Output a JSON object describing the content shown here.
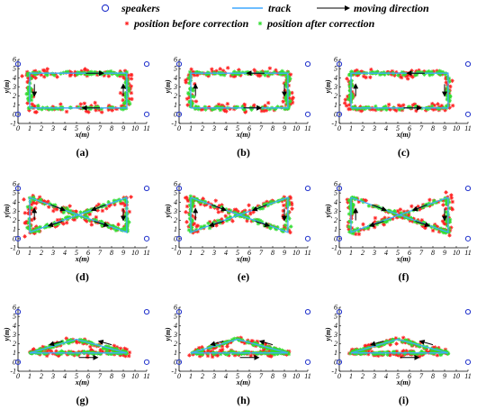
{
  "figure": {
    "legend": [
      {
        "key": "speakers",
        "label": "speakers",
        "marker": "circle",
        "color": "#2233cc"
      },
      {
        "key": "track",
        "label": "track",
        "marker": "line",
        "color": "#3fa9ff"
      },
      {
        "key": "moving_direction",
        "label": "moving direction",
        "marker": "arrow",
        "color": "#000000"
      },
      {
        "key": "before",
        "label": "position before correction",
        "marker": "asterisk",
        "color": "#ff2020"
      },
      {
        "key": "after",
        "label": "position after correction",
        "marker": "asterisk",
        "color": "#33dd33"
      }
    ]
  },
  "chart_data": [
    {
      "panel": "(a)",
      "type": "scatter",
      "track_shape": "rectangle",
      "arrows": "ccw",
      "xlabel": "x(m)",
      "ylabel": "y(m)",
      "xlim": [
        0,
        11
      ],
      "ylim": [
        -1,
        6
      ],
      "xticks": [
        "0",
        "1",
        "2",
        "3",
        "4",
        "5",
        "6",
        "7",
        "8",
        "9",
        "10",
        "11"
      ],
      "yticks": [
        "-1",
        "0",
        "1",
        "2",
        "3",
        "4",
        "5",
        "6"
      ],
      "speakers": [
        [
          0,
          0
        ],
        [
          0,
          5.5
        ],
        [
          11,
          0
        ],
        [
          11,
          5.5
        ]
      ],
      "track": [
        [
          1,
          0.7
        ],
        [
          9.3,
          0.7
        ],
        [
          9.3,
          4.5
        ],
        [
          1,
          4.5
        ],
        [
          1,
          0.7
        ]
      ],
      "direction_arrows": [
        [
          [
            7,
            0.7
          ],
          [
            5.5,
            0.7
          ]
        ],
        [
          [
            5.8,
            4.5
          ],
          [
            7.3,
            4.5
          ]
        ],
        [
          [
            1.4,
            3.3
          ],
          [
            1.4,
            2
          ]
        ],
        [
          [
            9,
            2
          ],
          [
            9,
            3.3
          ]
        ]
      ],
      "series": [
        {
          "name": "position before correction",
          "spread": 0.42
        },
        {
          "name": "position after correction",
          "spread": 0.18
        }
      ]
    },
    {
      "panel": "(b)",
      "type": "scatter",
      "track_shape": "rectangle",
      "arrows": "cw",
      "xlabel": "x(m)",
      "ylabel": "y(m)",
      "xlim": [
        0,
        11
      ],
      "ylim": [
        -1,
        6
      ],
      "xticks": [
        "0",
        "1",
        "2",
        "3",
        "4",
        "5",
        "6",
        "7",
        "8",
        "9",
        "10",
        "11"
      ],
      "yticks": [
        "-1",
        "0",
        "1",
        "2",
        "3",
        "4",
        "5",
        "6"
      ],
      "speakers": [
        [
          0,
          0
        ],
        [
          0,
          5.5
        ],
        [
          11,
          0
        ],
        [
          11,
          5.5
        ]
      ],
      "track": [
        [
          1,
          0.7
        ],
        [
          9.3,
          0.7
        ],
        [
          9.3,
          4.5
        ],
        [
          1,
          4.5
        ],
        [
          1,
          0.7
        ]
      ],
      "direction_arrows": [
        [
          [
            5.5,
            0.7
          ],
          [
            7,
            0.7
          ]
        ],
        [
          [
            7.3,
            4.5
          ],
          [
            5.8,
            4.5
          ]
        ],
        [
          [
            1.4,
            2
          ],
          [
            1.4,
            3.3
          ]
        ],
        [
          [
            9,
            3.3
          ],
          [
            9,
            2
          ]
        ]
      ],
      "series": [
        {
          "name": "position before correction",
          "spread": 0.42
        },
        {
          "name": "position after correction",
          "spread": 0.18
        }
      ]
    },
    {
      "panel": "(c)",
      "type": "scatter",
      "track_shape": "rectangle",
      "arrows": "cw",
      "xlabel": "x(m)",
      "ylabel": "y(m)",
      "xlim": [
        0,
        11
      ],
      "ylim": [
        -1,
        6
      ],
      "xticks": [
        "0",
        "1",
        "2",
        "3",
        "4",
        "5",
        "6",
        "7",
        "8",
        "9",
        "10",
        "11"
      ],
      "yticks": [
        "-1",
        "0",
        "1",
        "2",
        "3",
        "4",
        "5",
        "6"
      ],
      "speakers": [
        [
          0,
          0
        ],
        [
          0,
          5.5
        ],
        [
          11,
          0
        ],
        [
          11,
          5.5
        ]
      ],
      "track": [
        [
          1,
          0.7
        ],
        [
          9.3,
          0.7
        ],
        [
          9.3,
          4.5
        ],
        [
          1,
          4.5
        ],
        [
          1,
          0.7
        ]
      ],
      "direction_arrows": [
        [
          [
            5.5,
            0.7
          ],
          [
            7,
            0.7
          ]
        ],
        [
          [
            7.3,
            4.5
          ],
          [
            5.8,
            4.5
          ]
        ],
        [
          [
            1.4,
            2
          ],
          [
            1.4,
            3.3
          ]
        ],
        [
          [
            9,
            3.3
          ],
          [
            9,
            2
          ]
        ]
      ],
      "series": [
        {
          "name": "position before correction",
          "spread": 0.42
        },
        {
          "name": "position after correction",
          "spread": 0.18
        }
      ]
    },
    {
      "panel": "(d)",
      "type": "scatter",
      "track_shape": "hourglass",
      "arrows": "fig8",
      "xlabel": "x(m)",
      "ylabel": "y(m)",
      "xlim": [
        0,
        11
      ],
      "ylim": [
        -1,
        6
      ],
      "xticks": [
        "0",
        "1",
        "2",
        "3",
        "4",
        "5",
        "6",
        "7",
        "8",
        "9",
        "10",
        "11"
      ],
      "yticks": [
        "-1",
        "0",
        "1",
        "2",
        "3",
        "4",
        "5",
        "6"
      ],
      "speakers": [
        [
          0,
          0
        ],
        [
          0,
          5.5
        ],
        [
          11,
          0
        ],
        [
          11,
          5.5
        ]
      ],
      "track": [
        [
          1,
          4.5
        ],
        [
          9.3,
          0.7
        ],
        [
          9.3,
          4.5
        ],
        [
          1,
          0.7
        ],
        [
          1,
          4.5
        ]
      ],
      "direction_arrows": [
        [
          [
            2.8,
            3.7
          ],
          [
            4,
            3.1
          ]
        ],
        [
          [
            6.5,
            1.9
          ],
          [
            7.7,
            1.4
          ]
        ],
        [
          [
            7.5,
            3.7
          ],
          [
            6.3,
            3.1
          ]
        ],
        [
          [
            3.8,
            1.9
          ],
          [
            2.6,
            1.4
          ]
        ],
        [
          [
            1.4,
            2
          ],
          [
            1.4,
            3.3
          ]
        ],
        [
          [
            9,
            3.3
          ],
          [
            9,
            2
          ]
        ]
      ],
      "series": [
        {
          "name": "position before correction",
          "spread": 0.42
        },
        {
          "name": "position after correction",
          "spread": 0.18
        }
      ]
    },
    {
      "panel": "(e)",
      "type": "scatter",
      "track_shape": "hourglass",
      "arrows": "fig8",
      "xlabel": "x(m)",
      "ylabel": "y(m)",
      "xlim": [
        0,
        11
      ],
      "ylim": [
        -1,
        6
      ],
      "xticks": [
        "0",
        "1",
        "2",
        "3",
        "4",
        "5",
        "6",
        "7",
        "8",
        "9",
        "10",
        "11"
      ],
      "yticks": [
        "-1",
        "0",
        "1",
        "2",
        "3",
        "4",
        "5",
        "6"
      ],
      "speakers": [
        [
          0,
          0
        ],
        [
          0,
          5.5
        ],
        [
          11,
          0
        ],
        [
          11,
          5.5
        ]
      ],
      "track": [
        [
          1,
          4.5
        ],
        [
          9.3,
          0.7
        ],
        [
          9.3,
          4.5
        ],
        [
          1,
          0.7
        ],
        [
          1,
          4.5
        ]
      ],
      "direction_arrows": [
        [
          [
            2.8,
            3.7
          ],
          [
            4,
            3.1
          ]
        ],
        [
          [
            6.5,
            1.9
          ],
          [
            7.7,
            1.4
          ]
        ],
        [
          [
            7.5,
            3.7
          ],
          [
            6.3,
            3.1
          ]
        ],
        [
          [
            3.8,
            1.9
          ],
          [
            2.6,
            1.4
          ]
        ],
        [
          [
            1.4,
            2
          ],
          [
            1.4,
            3.3
          ]
        ],
        [
          [
            9,
            3.3
          ],
          [
            9,
            2
          ]
        ]
      ],
      "series": [
        {
          "name": "position before correction",
          "spread": 0.42
        },
        {
          "name": "position after correction",
          "spread": 0.18
        }
      ]
    },
    {
      "panel": "(f)",
      "type": "scatter",
      "track_shape": "hourglass",
      "arrows": "fig8",
      "xlabel": "x(m)",
      "ylabel": "y(m)",
      "xlim": [
        0,
        11
      ],
      "ylim": [
        -1,
        6
      ],
      "xticks": [
        "0",
        "1",
        "2",
        "3",
        "4",
        "5",
        "6",
        "7",
        "8",
        "9",
        "10",
        "11"
      ],
      "yticks": [
        "-1",
        "0",
        "1",
        "2",
        "3",
        "4",
        "5",
        "6"
      ],
      "speakers": [
        [
          0,
          0
        ],
        [
          0,
          5.5
        ],
        [
          11,
          0
        ],
        [
          11,
          5.5
        ]
      ],
      "track": [
        [
          1,
          4.5
        ],
        [
          9.3,
          0.7
        ],
        [
          9.3,
          4.5
        ],
        [
          1,
          0.7
        ],
        [
          1,
          4.5
        ]
      ],
      "direction_arrows": [
        [
          [
            2.8,
            3.7
          ],
          [
            4,
            3.1
          ]
        ],
        [
          [
            6.5,
            1.9
          ],
          [
            7.7,
            1.4
          ]
        ],
        [
          [
            7.5,
            3.7
          ],
          [
            6.3,
            3.1
          ]
        ],
        [
          [
            3.8,
            1.9
          ],
          [
            2.6,
            1.4
          ]
        ],
        [
          [
            1.4,
            2
          ],
          [
            1.4,
            3.3
          ]
        ],
        [
          [
            9,
            3.3
          ],
          [
            9,
            2
          ]
        ]
      ],
      "series": [
        {
          "name": "position before correction",
          "spread": 0.42
        },
        {
          "name": "position after correction",
          "spread": 0.18
        }
      ]
    },
    {
      "panel": "(g)",
      "type": "scatter",
      "track_shape": "triangle",
      "arrows": "tri",
      "xlabel": "x(m)",
      "ylabel": "y(m)",
      "xlim": [
        0,
        11
      ],
      "ylim": [
        -1,
        6
      ],
      "xticks": [
        "0",
        "1",
        "2",
        "3",
        "4",
        "5",
        "6",
        "7",
        "8",
        "9",
        "10",
        "11"
      ],
      "yticks": [
        "-1",
        "0",
        "1",
        "2",
        "3",
        "4",
        "5",
        "6"
      ],
      "speakers": [
        [
          0,
          0
        ],
        [
          0,
          5.5
        ],
        [
          11,
          0
        ],
        [
          11,
          5.5
        ]
      ],
      "track": [
        [
          1,
          1
        ],
        [
          9.3,
          1
        ],
        [
          5,
          2.5
        ],
        [
          1,
          1
        ]
      ],
      "direction_arrows": [
        [
          [
            5.2,
            0.5
          ],
          [
            6.8,
            0.5
          ]
        ],
        [
          [
            8,
            1.9
          ],
          [
            6.9,
            2.3
          ]
        ],
        [
          [
            3.8,
            2.3
          ],
          [
            2.7,
            1.9
          ]
        ]
      ],
      "series": [
        {
          "name": "position before correction",
          "spread": 0.3
        },
        {
          "name": "position after correction",
          "spread": 0.14
        }
      ]
    },
    {
      "panel": "(h)",
      "type": "scatter",
      "track_shape": "triangle",
      "arrows": "tri",
      "xlabel": "x(m)",
      "ylabel": "y(m)",
      "xlim": [
        0,
        11
      ],
      "ylim": [
        -1,
        6
      ],
      "xticks": [
        "0",
        "1",
        "2",
        "3",
        "4",
        "5",
        "6",
        "7",
        "8",
        "9",
        "10",
        "11"
      ],
      "yticks": [
        "-1",
        "0",
        "1",
        "2",
        "3",
        "4",
        "5",
        "6"
      ],
      "speakers": [
        [
          0,
          0
        ],
        [
          0,
          5.5
        ],
        [
          11,
          0
        ],
        [
          11,
          5.5
        ]
      ],
      "track": [
        [
          1,
          1
        ],
        [
          9.3,
          1
        ],
        [
          5,
          2.5
        ],
        [
          1,
          1
        ]
      ],
      "direction_arrows": [
        [
          [
            5.2,
            0.5
          ],
          [
            6.8,
            0.5
          ]
        ],
        [
          [
            8,
            1.9
          ],
          [
            6.9,
            2.3
          ]
        ],
        [
          [
            3.8,
            2.3
          ],
          [
            2.7,
            1.9
          ]
        ]
      ],
      "series": [
        {
          "name": "position before correction",
          "spread": 0.3
        },
        {
          "name": "position after correction",
          "spread": 0.14
        }
      ]
    },
    {
      "panel": "(i)",
      "type": "scatter",
      "track_shape": "triangle",
      "arrows": "tri",
      "xlabel": "x(m)",
      "ylabel": "y(m)",
      "xlim": [
        0,
        11
      ],
      "ylim": [
        -1,
        6
      ],
      "xticks": [
        "0",
        "1",
        "2",
        "3",
        "4",
        "5",
        "6",
        "7",
        "8",
        "9",
        "10",
        "11"
      ],
      "yticks": [
        "-1",
        "0",
        "1",
        "2",
        "3",
        "4",
        "5",
        "6"
      ],
      "speakers": [
        [
          0,
          0
        ],
        [
          0,
          5.5
        ],
        [
          11,
          0
        ],
        [
          11,
          5.5
        ]
      ],
      "track": [
        [
          1,
          1
        ],
        [
          9.3,
          1
        ],
        [
          5,
          2.5
        ],
        [
          1,
          1
        ]
      ],
      "direction_arrows": [
        [
          [
            5.2,
            0.5
          ],
          [
            6.8,
            0.5
          ]
        ],
        [
          [
            8,
            1.9
          ],
          [
            6.9,
            2.3
          ]
        ],
        [
          [
            3.8,
            2.3
          ],
          [
            2.7,
            1.9
          ]
        ]
      ],
      "series": [
        {
          "name": "position before correction",
          "spread": 0.3
        },
        {
          "name": "position after correction",
          "spread": 0.14
        }
      ]
    }
  ]
}
